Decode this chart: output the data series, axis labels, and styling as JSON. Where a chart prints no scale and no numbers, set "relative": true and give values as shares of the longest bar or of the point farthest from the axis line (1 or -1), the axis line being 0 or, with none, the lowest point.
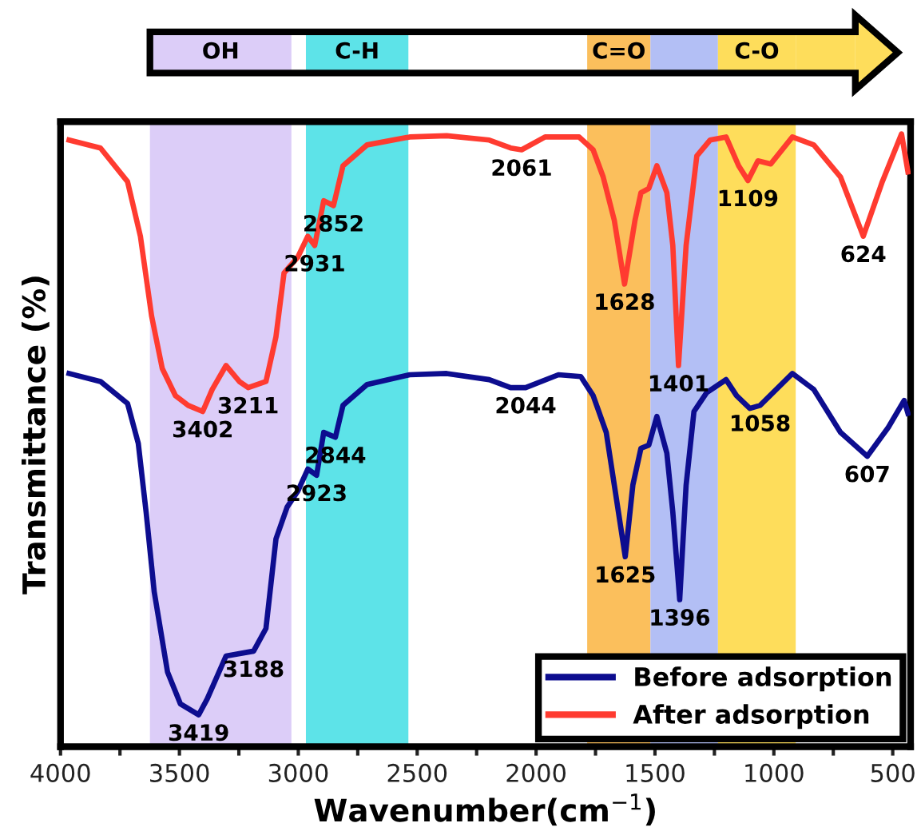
{
  "chart_data": {
    "type": "line",
    "relative": true,
    "xlabel": "Wavenumber(cm$^{−1}$)",
    "ylabel": "Transmittance (%)",
    "xlim": [
      4000,
      425
    ],
    "xticks": [
      4000,
      {
        "value": 3750,
        "label": null
      },
      3500,
      {
        "value": 3250,
        "label": null
      },
      3000,
      {
        "value": 2750,
        "label": null
      },
      2500,
      {
        "value": 2250,
        "label": null
      },
      2000,
      {
        "value": 1750,
        "label": null
      },
      1500,
      {
        "value": 1250,
        "label": null
      },
      1000,
      {
        "value": 750,
        "label": null
      },
      500
    ],
    "grid": false,
    "legend": "bottom right",
    "marker": "none",
    "line_style": "solid",
    "series": [
      {
        "name": "Before adsorption",
        "color": "#0d0d8f",
        "x": [
          3964,
          3832,
          3718,
          3673,
          3640,
          3606,
          3550,
          3496,
          3419,
          3383,
          3304,
          3188,
          3136,
          3094,
          3047,
          3002,
          2960,
          2923,
          2893,
          2844,
          2812,
          2711,
          2532,
          2376,
          2197,
          2107,
          2044,
          1906,
          1812,
          1760,
          1705,
          1671,
          1625,
          1593,
          1559,
          1526,
          1492,
          1450,
          1425,
          1396,
          1369,
          1336,
          1282,
          1201,
          1157,
          1101,
          1058,
          922,
          832,
          720,
          607,
          519,
          452,
          436
        ],
        "values": [
          0.609,
          0.596,
          0.56,
          0.495,
          0.383,
          0.253,
          0.122,
          0.07,
          0.052,
          0.078,
          0.148,
          0.156,
          0.193,
          0.339,
          0.391,
          0.417,
          0.453,
          0.443,
          0.513,
          0.505,
          0.557,
          0.591,
          0.607,
          0.609,
          0.599,
          0.586,
          0.586,
          0.607,
          0.604,
          0.573,
          0.513,
          0.427,
          0.31,
          0.427,
          0.487,
          0.492,
          0.539,
          0.479,
          0.383,
          0.24,
          0.427,
          0.547,
          0.578,
          0.599,
          0.573,
          0.552,
          0.557,
          0.609,
          0.583,
          0.513,
          0.474,
          0.521,
          0.565,
          0.544
        ]
      },
      {
        "name": "After adsorption",
        "color": "#ff3b30",
        "x": [
          3964,
          3832,
          3718,
          3664,
          3617,
          3572,
          3517,
          3463,
          3402,
          3362,
          3304,
          3248,
          3211,
          3136,
          3094,
          3060,
          3002,
          2960,
          2931,
          2893,
          2852,
          2812,
          2711,
          2532,
          2376,
          2197,
          2107,
          2061,
          1962,
          1819,
          1760,
          1718,
          1671,
          1628,
          1584,
          1559,
          1526,
          1492,
          1450,
          1425,
          1401,
          1369,
          1324,
          1268,
          1201,
          1148,
          1109,
          1067,
          1013,
          922,
          832,
          720,
          624,
          544,
          463,
          436
        ],
        "values": [
          0.99,
          0.977,
          0.922,
          0.833,
          0.703,
          0.617,
          0.573,
          0.557,
          0.547,
          0.583,
          0.622,
          0.596,
          0.586,
          0.596,
          0.669,
          0.773,
          0.799,
          0.833,
          0.818,
          0.891,
          0.883,
          0.948,
          0.982,
          0.995,
          0.997,
          0.99,
          0.977,
          0.974,
          0.995,
          0.995,
          0.974,
          0.93,
          0.859,
          0.755,
          0.859,
          0.904,
          0.911,
          0.948,
          0.904,
          0.818,
          0.622,
          0.818,
          0.964,
          0.99,
          0.995,
          0.948,
          0.924,
          0.956,
          0.951,
          0.995,
          0.982,
          0.93,
          0.833,
          0.922,
          1.0,
          0.938
        ]
      }
    ],
    "bands": [
      {
        "axis": "x",
        "from": 3624,
        "to": 3029,
        "label": "OH",
        "color": "#dccdf8"
      },
      {
        "axis": "x",
        "from": 2968,
        "to": 2537,
        "label": "C-H",
        "color": "#5de3e8"
      },
      {
        "axis": "x",
        "from": 1785,
        "to": 1519,
        "label": "C=O",
        "color": "#fbbf5c"
      },
      {
        "axis": "x",
        "from": 1519,
        "to": 1235,
        "label": null,
        "color": "#b3bff5"
      },
      {
        "axis": "x",
        "from": 1235,
        "to": 908,
        "label": "C-O",
        "color": "#fedd5b"
      }
    ],
    "annotations": [
      {
        "text": "3402",
        "x": 3402,
        "y": 0.547
      },
      {
        "text": "3211",
        "x": 3211,
        "y": 0.586
      },
      {
        "text": "2931",
        "x": 2931,
        "y": 0.818
      },
      {
        "text": "2852",
        "x": 2852,
        "y": 0.883
      },
      {
        "text": "2061",
        "x": 2061,
        "y": 0.974
      },
      {
        "text": "1628",
        "x": 1628,
        "y": 0.755
      },
      {
        "text": "1401",
        "x": 1401,
        "y": 0.622
      },
      {
        "text": "1109",
        "x": 1109,
        "y": 0.924
      },
      {
        "text": "624",
        "x": 624,
        "y": 0.833
      },
      {
        "text": "3419",
        "x": 3419,
        "y": 0.052
      },
      {
        "text": "3188",
        "x": 3188,
        "y": 0.156
      },
      {
        "text": "2923",
        "x": 2923,
        "y": 0.443
      },
      {
        "text": "2844",
        "x": 2844,
        "y": 0.505
      },
      {
        "text": "2044",
        "x": 2044,
        "y": 0.586
      },
      {
        "text": "1625",
        "x": 1625,
        "y": 0.31
      },
      {
        "text": "1396",
        "x": 1396,
        "y": 0.24
      },
      {
        "text": "1058",
        "x": 1058,
        "y": 0.557
      },
      {
        "text": "607",
        "x": 607,
        "y": 0.474
      }
    ]
  }
}
